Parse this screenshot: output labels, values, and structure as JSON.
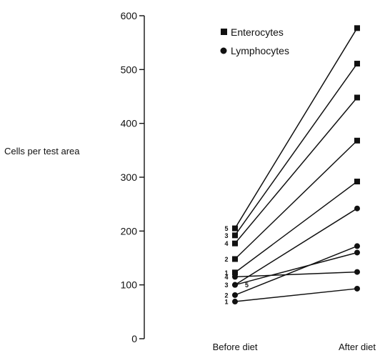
{
  "chart_data": {
    "type": "line",
    "ylabel": "Cells per test area",
    "ylim": [
      0,
      600
    ],
    "yticks": [
      0,
      100,
      200,
      300,
      400,
      500,
      600
    ],
    "categories": [
      "Before diet",
      "After diet"
    ],
    "legend": {
      "placement": "top",
      "entries": [
        {
          "name": "Enterocytes",
          "marker": "square"
        },
        {
          "name": "Lymphocytes",
          "marker": "circle"
        }
      ]
    },
    "series": [
      {
        "name": "Enterocytes",
        "marker": "square",
        "subject": "1",
        "values": [
          123,
          292
        ]
      },
      {
        "name": "Enterocytes",
        "marker": "square",
        "subject": "2",
        "values": [
          148,
          368
        ]
      },
      {
        "name": "Enterocytes",
        "marker": "square",
        "subject": "3",
        "values": [
          192,
          511
        ]
      },
      {
        "name": "Enterocytes",
        "marker": "square",
        "subject": "4",
        "values": [
          177,
          448
        ]
      },
      {
        "name": "Enterocytes",
        "marker": "square",
        "subject": "5",
        "values": [
          205,
          577
        ]
      },
      {
        "name": "Lymphocytes",
        "marker": "circle",
        "subject": "1",
        "values": [
          69,
          93
        ]
      },
      {
        "name": "Lymphocytes",
        "marker": "circle",
        "subject": "2",
        "values": [
          81,
          172
        ]
      },
      {
        "name": "Lymphocytes",
        "marker": "circle",
        "subject": "3",
        "values": [
          100,
          160
        ]
      },
      {
        "name": "Lymphocytes",
        "marker": "circle",
        "subject": "4",
        "values": [
          115,
          124
        ]
      },
      {
        "name": "Lymphocytes",
        "marker": "circle",
        "subject": "5",
        "values": [
          100,
          242
        ]
      }
    ]
  }
}
